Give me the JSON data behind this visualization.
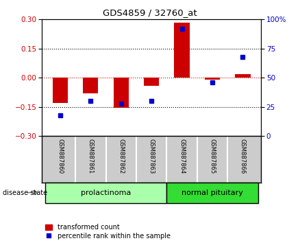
{
  "title": "GDS4859 / 32760_at",
  "samples": [
    "GSM887860",
    "GSM887861",
    "GSM887862",
    "GSM887863",
    "GSM887864",
    "GSM887865",
    "GSM887866"
  ],
  "transformed_count": [
    -0.13,
    -0.08,
    -0.155,
    -0.04,
    0.285,
    -0.01,
    0.02
  ],
  "percentile_rank": [
    18,
    30,
    28,
    30,
    92,
    46,
    68
  ],
  "groups": [
    {
      "label": "prolactinoma",
      "samples_idx": [
        0,
        1,
        2,
        3
      ],
      "color": "#aaffaa"
    },
    {
      "label": "normal pituitary",
      "samples_idx": [
        4,
        5,
        6
      ],
      "color": "#33dd33"
    }
  ],
  "ylim_left": [
    -0.3,
    0.3
  ],
  "ylim_right": [
    0,
    100
  ],
  "yticks_left": [
    -0.3,
    -0.15,
    0,
    0.15,
    0.3
  ],
  "yticks_right": [
    0,
    25,
    50,
    75,
    100
  ],
  "bar_color": "#cc0000",
  "dot_color": "#0000cc",
  "hline_color": "#cc0000",
  "dotted_line_color": "#000000",
  "background_color": "#ffffff",
  "plot_bg": "#ffffff",
  "left_label_color": "#cc0000",
  "right_label_color": "#0000cc",
  "disease_state_label": "disease state",
  "legend_bar_label": "transformed count",
  "legend_dot_label": "percentile rank within the sample",
  "sample_box_color": "#cccccc",
  "group_border_color": "#000000",
  "bar_width": 0.5
}
